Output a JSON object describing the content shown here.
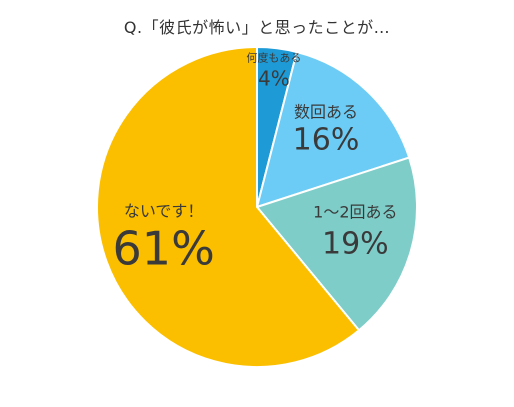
{
  "chart_data": {
    "type": "pie",
    "title": "Q.「彼氏が怖い」と思ったことが…",
    "slices": [
      {
        "label": "何度もある",
        "value": 4,
        "display": "4%",
        "color": "#1e9ad6"
      },
      {
        "label": "数回ある",
        "value": 16,
        "display": "16%",
        "color": "#6cccf5"
      },
      {
        "label": "1〜2回ある",
        "value": 19,
        "display": "19%",
        "color": "#7ecdc8"
      },
      {
        "label": "ないです！",
        "value": 61,
        "display": "61%",
        "color": "#fbbf00"
      }
    ]
  }
}
